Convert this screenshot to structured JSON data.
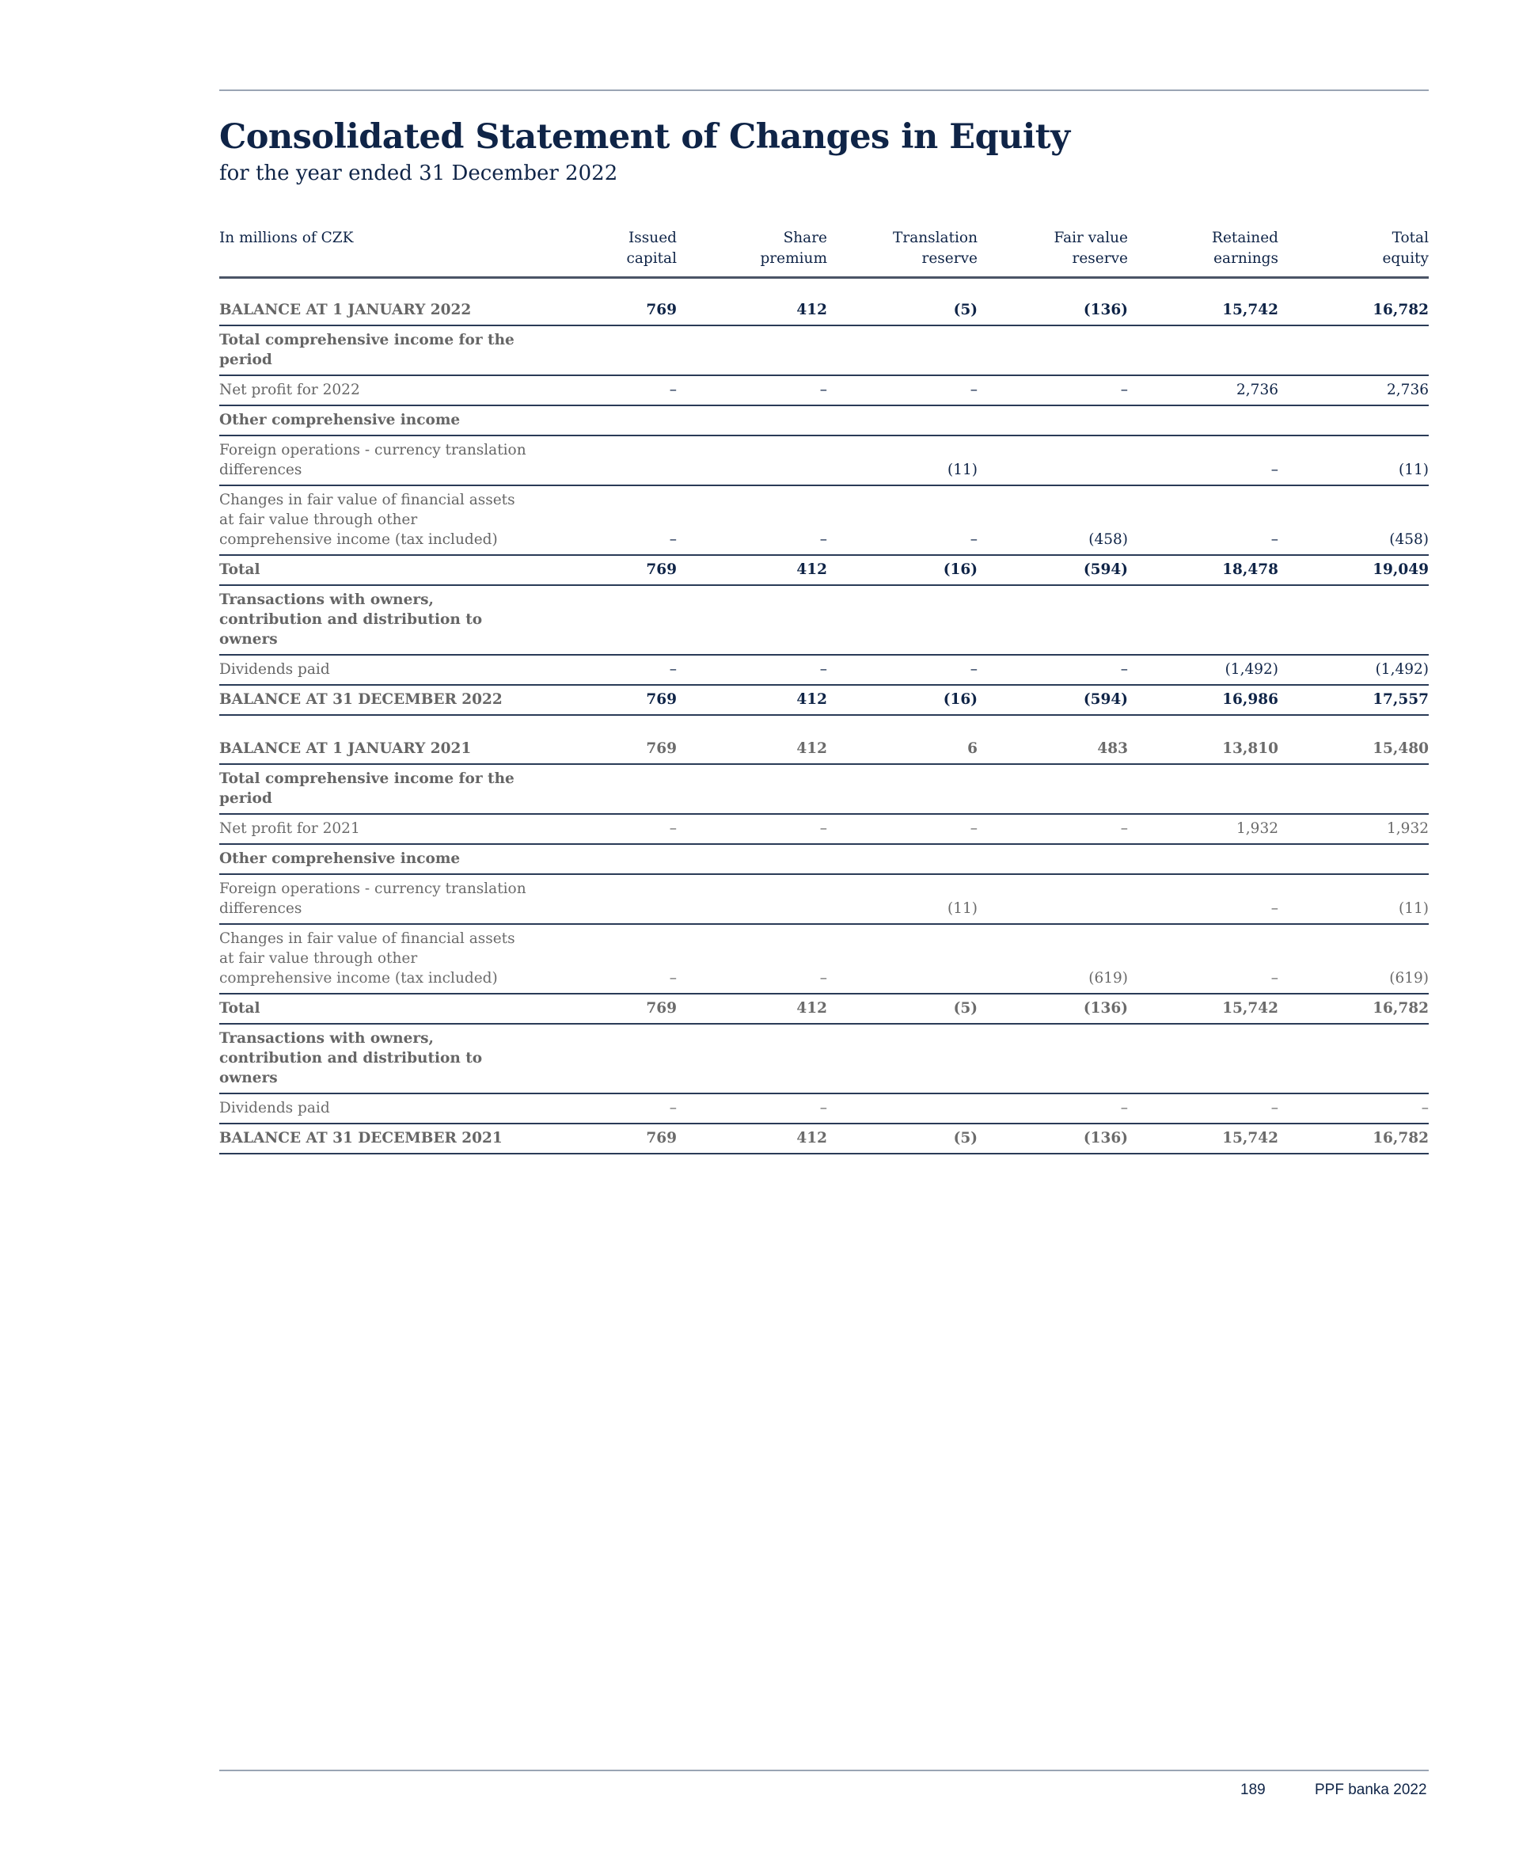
{
  "header": {
    "title": "Consolidated Statement of Changes in Equity",
    "subtitle": "for the year ended 31 December 2022"
  },
  "table": {
    "columns": [
      "In millions of CZK",
      "Issued\ncapital",
      "Share\npremium",
      "Translation\nreserve",
      "Fair value\nreserve",
      "Retained\nearnings",
      "Total\nequity"
    ],
    "rows": [
      {
        "style": "bold dark caps",
        "cells": [
          "BALANCE AT 1 JANUARY 2022",
          "769",
          "412",
          "(5)",
          "(136)",
          "15,742",
          "16,782"
        ]
      },
      {
        "style": "section",
        "cells": [
          "Total comprehensive income for the period",
          "",
          "",
          "",
          "",
          "",
          ""
        ]
      },
      {
        "style": "dark",
        "cells": [
          "Net profit for 2022",
          "–",
          "–",
          "–",
          "–",
          "2,736",
          "2,736"
        ]
      },
      {
        "style": "section",
        "cells": [
          "Other comprehensive income",
          "",
          "",
          "",
          "",
          "",
          ""
        ]
      },
      {
        "style": "dark",
        "cells": [
          "Foreign operations - currency translation differences",
          "",
          "",
          "(11)",
          "",
          "–",
          "(11)"
        ]
      },
      {
        "style": "dark",
        "cells": [
          "Changes in fair value of financial assets at fair value through other comprehensive income (tax included)",
          "–",
          "–",
          "–",
          "(458)",
          "–",
          "(458)"
        ]
      },
      {
        "style": "bold dark",
        "cells": [
          "Total",
          "769",
          "412",
          "(16)",
          "(594)",
          "18,478",
          "19,049"
        ]
      },
      {
        "style": "section",
        "cells": [
          "Transactions with owners, contribution and distribution to owners",
          "",
          "",
          "",
          "",
          "",
          ""
        ]
      },
      {
        "style": "dark",
        "cells": [
          "Dividends paid",
          "–",
          "–",
          "–",
          "–",
          "(1,492)",
          "(1,492)"
        ]
      },
      {
        "style": "bold dark caps",
        "cells": [
          "BALANCE AT 31 DECEMBER 2022",
          "769",
          "412",
          "(16)",
          "(594)",
          "16,986",
          "17,557"
        ]
      },
      {
        "style": "gap",
        "cells": []
      },
      {
        "style": "bold caps",
        "cells": [
          "BALANCE AT 1 JANUARY 2021",
          "769",
          "412",
          "6",
          "483",
          "13,810",
          "15,480"
        ]
      },
      {
        "style": "section",
        "cells": [
          "Total comprehensive income for the period",
          "",
          "",
          "",
          "",
          "",
          ""
        ]
      },
      {
        "style": "",
        "cells": [
          "Net profit for 2021",
          "–",
          "–",
          "–",
          "–",
          "1,932",
          "1,932"
        ]
      },
      {
        "style": "section",
        "cells": [
          "Other comprehensive income",
          "",
          "",
          "",
          "",
          "",
          ""
        ]
      },
      {
        "style": "",
        "cells": [
          "Foreign operations - currency translation differences",
          "",
          "",
          "(11)",
          "",
          "–",
          "(11)"
        ]
      },
      {
        "style": "",
        "cells": [
          "Changes in fair value of financial assets at fair value through other comprehensive income (tax included)",
          "–",
          "–",
          "",
          "(619)",
          "–",
          "(619)"
        ]
      },
      {
        "style": "bold",
        "cells": [
          "Total",
          "769",
          "412",
          "(5)",
          "(136)",
          "15,742",
          "16,782"
        ]
      },
      {
        "style": "section",
        "cells": [
          "Transactions with owners, contribution and distribution to owners",
          "",
          "",
          "",
          "",
          "",
          ""
        ]
      },
      {
        "style": "",
        "cells": [
          "Dividends paid",
          "–",
          "–",
          "",
          "–",
          "–",
          "–"
        ]
      },
      {
        "style": "bold caps",
        "cells": [
          "BALANCE AT 31 DECEMBER 2021",
          "769",
          "412",
          "(5)",
          "(136)",
          "15,742",
          "16,782"
        ]
      }
    ]
  },
  "footer": {
    "page_number": "189",
    "publication": "PPF banka 2022"
  }
}
